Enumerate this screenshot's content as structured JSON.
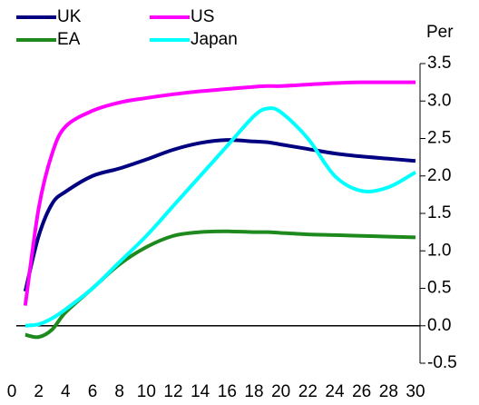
{
  "chart_data": {
    "type": "line",
    "y_label": "Per",
    "x": [
      1,
      2,
      3,
      4,
      6,
      8,
      10,
      12,
      14,
      16,
      18,
      19,
      20,
      22,
      24,
      26,
      28,
      30
    ],
    "series": [
      {
        "name": "UK",
        "color": "#000080",
        "values": [
          0.46,
          1.2,
          1.63,
          1.79,
          2.0,
          2.1,
          2.22,
          2.35,
          2.44,
          2.48,
          2.46,
          2.45,
          2.42,
          2.36,
          2.3,
          2.26,
          2.23,
          2.2
        ]
      },
      {
        "name": "US",
        "color": "#ff00ff",
        "values": [
          0.27,
          1.57,
          2.3,
          2.66,
          2.87,
          2.98,
          3.04,
          3.09,
          3.13,
          3.16,
          3.19,
          3.2,
          3.2,
          3.22,
          3.24,
          3.25,
          3.25,
          3.25
        ]
      },
      {
        "name": "EA",
        "color": "#1e8a1e",
        "values": [
          -0.12,
          -0.15,
          -0.05,
          0.18,
          0.5,
          0.82,
          1.05,
          1.2,
          1.25,
          1.26,
          1.25,
          1.25,
          1.24,
          1.22,
          1.21,
          1.2,
          1.19,
          1.18
        ]
      },
      {
        "name": "Japan",
        "color": "#00ffff",
        "values": [
          0,
          0.02,
          0.1,
          0.22,
          0.5,
          0.85,
          1.2,
          1.6,
          2.0,
          2.4,
          2.8,
          2.9,
          2.85,
          2.5,
          2.0,
          1.8,
          1.85,
          2.05
        ]
      }
    ],
    "xlim": [
      0,
      30
    ],
    "xticks": [
      0,
      2,
      4,
      6,
      8,
      10,
      12,
      14,
      16,
      18,
      20,
      22,
      24,
      26,
      28,
      30
    ],
    "ylim": [
      -0.5,
      3.5
    ],
    "yticks": [
      -0.5,
      {
        "value": 0,
        "label": "0.0"
      },
      0.5,
      {
        "value": 1,
        "label": "1.0"
      },
      1.5,
      {
        "value": 2,
        "label": "2.0"
      },
      2.5,
      {
        "value": 3,
        "label": "3.0"
      },
      3.5
    ],
    "zero_line": true,
    "legend": "top-left"
  }
}
